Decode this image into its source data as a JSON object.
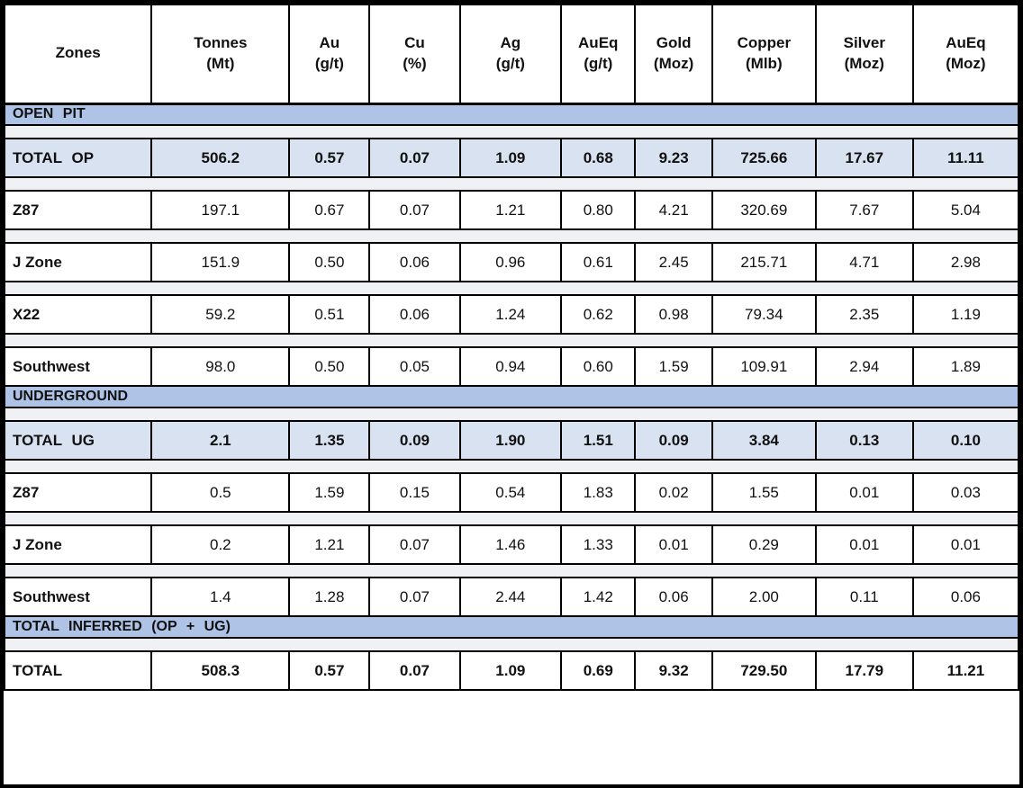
{
  "table": {
    "columns": [
      {
        "label": "Zones",
        "unit": ""
      },
      {
        "label": "Tonnes",
        "unit": "(Mt)"
      },
      {
        "label": "Au",
        "unit": "(g/t)"
      },
      {
        "label": "Cu",
        "unit": "(%)"
      },
      {
        "label": "Ag",
        "unit": "(g/t)"
      },
      {
        "label": "AuEq",
        "unit": "(g/t)"
      },
      {
        "label": "Gold",
        "unit": "(Moz)"
      },
      {
        "label": "Copper",
        "unit": "(Mlb)"
      },
      {
        "label": "Silver",
        "unit": "(Moz)"
      },
      {
        "label": "AuEq",
        "unit": "(Moz)"
      }
    ],
    "rows": [
      {
        "type": "section",
        "label": "OPEN PIT"
      },
      {
        "type": "spacer"
      },
      {
        "type": "total",
        "label": "TOTAL OP",
        "values": [
          "506.2",
          "0.57",
          "0.07",
          "1.09",
          "0.68",
          "9.23",
          "725.66",
          "17.67",
          "11.11"
        ]
      },
      {
        "type": "spacer"
      },
      {
        "type": "data",
        "label": "Z87",
        "values": [
          "197.1",
          "0.67",
          "0.07",
          "1.21",
          "0.80",
          "4.21",
          "320.69",
          "7.67",
          "5.04"
        ]
      },
      {
        "type": "spacer"
      },
      {
        "type": "data",
        "label": "J Zone",
        "values": [
          "151.9",
          "0.50",
          "0.06",
          "0.96",
          "0.61",
          "2.45",
          "215.71",
          "4.71",
          "2.98"
        ]
      },
      {
        "type": "spacer"
      },
      {
        "type": "data",
        "label": "X22",
        "values": [
          "59.2",
          "0.51",
          "0.06",
          "1.24",
          "0.62",
          "0.98",
          "79.34",
          "2.35",
          "1.19"
        ]
      },
      {
        "type": "spacer"
      },
      {
        "type": "data",
        "label": "Southwest",
        "values": [
          "98.0",
          "0.50",
          "0.05",
          "0.94",
          "0.60",
          "1.59",
          "109.91",
          "2.94",
          "1.89"
        ]
      },
      {
        "type": "section",
        "label": "UNDERGROUND"
      },
      {
        "type": "spacer"
      },
      {
        "type": "total",
        "label": "TOTAL UG",
        "values": [
          "2.1",
          "1.35",
          "0.09",
          "1.90",
          "1.51",
          "0.09",
          "3.84",
          "0.13",
          "0.10"
        ]
      },
      {
        "type": "spacer"
      },
      {
        "type": "data",
        "label": "Z87",
        "values": [
          "0.5",
          "1.59",
          "0.15",
          "0.54",
          "1.83",
          "0.02",
          "1.55",
          "0.01",
          "0.03"
        ]
      },
      {
        "type": "spacer"
      },
      {
        "type": "data",
        "label": "J Zone",
        "values": [
          "0.2",
          "1.21",
          "0.07",
          "1.46",
          "1.33",
          "0.01",
          "0.29",
          "0.01",
          "0.01"
        ]
      },
      {
        "type": "spacer"
      },
      {
        "type": "data",
        "label": "Southwest",
        "values": [
          "1.4",
          "1.28",
          "0.07",
          "2.44",
          "1.42",
          "0.06",
          "2.00",
          "0.11",
          "0.06"
        ]
      },
      {
        "type": "section",
        "label": "TOTAL INFERRED (OP + UG)"
      },
      {
        "type": "spacer"
      },
      {
        "type": "total_plain",
        "label": "TOTAL",
        "values": [
          "508.3",
          "0.57",
          "0.07",
          "1.09",
          "0.69",
          "9.32",
          "729.50",
          "17.79",
          "11.21"
        ]
      }
    ],
    "colors": {
      "section_band": "#aec3e6",
      "total_row": "#d9e2f1",
      "spacer_row": "#eff1f4",
      "data_row": "#ffffff",
      "header_bg": "#ffffff",
      "border": "#000000",
      "text": "#111111"
    },
    "column_widths_pct": [
      14.5,
      13.6,
      7.9,
      8.9,
      10.0,
      7.3,
      7.6,
      10.2,
      9.6,
      10.4
    ]
  }
}
